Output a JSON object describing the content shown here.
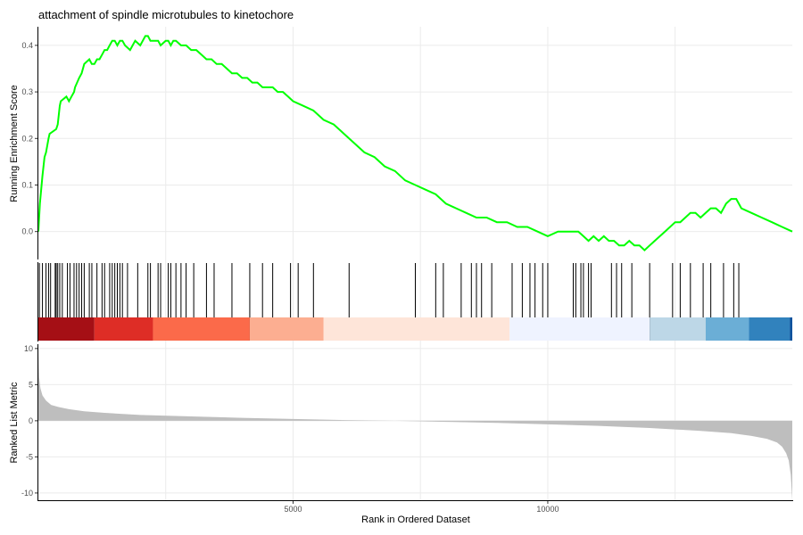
{
  "chart_data": {
    "type": "line",
    "title": "attachment of spindle microtubules to kinetochore",
    "xlabel": "Rank in Ordered Dataset",
    "xlim": [
      0,
      14800
    ],
    "xticks": [
      5000,
      10000
    ],
    "xtick_labels": [
      "5000",
      "10000"
    ],
    "grid": true,
    "panels": [
      {
        "name": "running-score",
        "ylabel": "Running Enrichment Score",
        "ylim": [
          -0.06,
          0.44
        ],
        "yticks": [
          0.0,
          0.1,
          0.2,
          0.3,
          0.4
        ],
        "ytick_labels": [
          "0.0",
          "0.1",
          "0.2",
          "0.3",
          "0.4"
        ],
        "series": [
          {
            "color": "#00ff00",
            "x": [
              0,
              30,
              80,
              120,
              150,
              200,
              220,
              350,
              380,
              420,
              440,
              550,
              600,
              650,
              700,
              720,
              800,
              850,
              900,
              1000,
              1050,
              1100,
              1150,
              1200,
              1250,
              1300,
              1350,
              1400,
              1450,
              1500,
              1550,
              1600,
              1650,
              1700,
              1800,
              1900,
              2000,
              2100,
              2150,
              2200,
              2300,
              2350,
              2400,
              2500,
              2550,
              2600,
              2650,
              2700,
              2800,
              2900,
              3000,
              3100,
              3200,
              3300,
              3400,
              3500,
              3600,
              3700,
              3800,
              3900,
              4000,
              4100,
              4200,
              4300,
              4400,
              4500,
              4600,
              4700,
              4800,
              4900,
              5000,
              5200,
              5400,
              5600,
              5800,
              6000,
              6200,
              6400,
              6600,
              6800,
              7000,
              7200,
              7400,
              7600,
              7800,
              8000,
              8200,
              8400,
              8600,
              8800,
              9000,
              9200,
              9400,
              9600,
              9800,
              10000,
              10200,
              10400,
              10500,
              10600,
              10700,
              10800,
              10900,
              11000,
              11100,
              11200,
              11300,
              11400,
              11500,
              11600,
              11700,
              11800,
              11900,
              12000,
              12100,
              12200,
              12300,
              12400,
              12500,
              12600,
              12700,
              12800,
              12900,
              13000,
              13100,
              13200,
              13300,
              13400,
              13500,
              13600,
              13700,
              13800,
              14000,
              14200,
              14400,
              14600,
              14800
            ],
            "y": [
              0.0,
              0.06,
              0.12,
              0.16,
              0.17,
              0.2,
              0.21,
              0.22,
              0.23,
              0.27,
              0.28,
              0.29,
              0.28,
              0.29,
              0.3,
              0.31,
              0.33,
              0.34,
              0.36,
              0.37,
              0.36,
              0.36,
              0.37,
              0.37,
              0.38,
              0.39,
              0.39,
              0.4,
              0.41,
              0.41,
              0.4,
              0.41,
              0.41,
              0.4,
              0.39,
              0.41,
              0.4,
              0.42,
              0.42,
              0.41,
              0.41,
              0.41,
              0.4,
              0.41,
              0.41,
              0.4,
              0.41,
              0.41,
              0.4,
              0.4,
              0.39,
              0.39,
              0.38,
              0.37,
              0.37,
              0.36,
              0.36,
              0.35,
              0.34,
              0.34,
              0.33,
              0.33,
              0.32,
              0.32,
              0.31,
              0.31,
              0.31,
              0.3,
              0.3,
              0.29,
              0.28,
              0.27,
              0.26,
              0.24,
              0.23,
              0.21,
              0.19,
              0.17,
              0.16,
              0.14,
              0.13,
              0.11,
              0.1,
              0.09,
              0.08,
              0.06,
              0.05,
              0.04,
              0.03,
              0.03,
              0.02,
              0.02,
              0.01,
              0.01,
              0.0,
              -0.01,
              0.0,
              0.0,
              0.0,
              0.0,
              -0.01,
              -0.02,
              -0.01,
              -0.02,
              -0.01,
              -0.02,
              -0.02,
              -0.03,
              -0.03,
              -0.02,
              -0.03,
              -0.03,
              -0.04,
              -0.03,
              -0.02,
              -0.01,
              0.0,
              0.01,
              0.02,
              0.02,
              0.03,
              0.04,
              0.04,
              0.03,
              0.04,
              0.05,
              0.05,
              0.04,
              0.06,
              0.07,
              0.07,
              0.05,
              0.04,
              0.03,
              0.02,
              0.01,
              0.0
            ]
          }
        ]
      },
      {
        "name": "gene-hits",
        "type": "rug",
        "hits": [
          20,
          80,
          150,
          200,
          240,
          330,
          350,
          380,
          420,
          470,
          570,
          620,
          700,
          750,
          800,
          850,
          900,
          1000,
          1050,
          1150,
          1250,
          1300,
          1400,
          1450,
          1500,
          1550,
          1600,
          1650,
          1750,
          1950,
          2150,
          2200,
          2350,
          2400,
          2550,
          2600,
          2700,
          2800,
          2900,
          3050,
          3300,
          3450,
          3800,
          4150,
          4400,
          4600,
          4950,
          5100,
          5400,
          6100,
          7400,
          7800,
          7950,
          8300,
          8500,
          8600,
          8700,
          8900,
          9300,
          9500,
          9650,
          9750,
          9900,
          10000,
          10500,
          10550,
          10650,
          10700,
          10800,
          10850,
          11250,
          11350,
          11450,
          11650,
          12000,
          12450,
          12600,
          12800,
          13050,
          13200,
          13450,
          13650,
          13750
        ]
      },
      {
        "name": "rank-heatmap",
        "type": "heatmap",
        "bands": [
          {
            "from": 0,
            "to": 1100,
            "color": "#a50f15"
          },
          {
            "from": 1100,
            "to": 2250,
            "color": "#de2d26"
          },
          {
            "from": 2250,
            "to": 4150,
            "color": "#fb6a4a"
          },
          {
            "from": 4150,
            "to": 5600,
            "color": "#fcae91"
          },
          {
            "from": 5600,
            "to": 9250,
            "color": "#fee5d9"
          },
          {
            "from": 9250,
            "to": 12000,
            "color": "#eff3ff"
          },
          {
            "from": 12000,
            "to": 13100,
            "color": "#bdd7e7"
          },
          {
            "from": 13100,
            "to": 13950,
            "color": "#6baed6"
          },
          {
            "from": 13950,
            "to": 14750,
            "color": "#3182bd"
          },
          {
            "from": 14750,
            "to": 14800,
            "color": "#08519c"
          }
        ]
      },
      {
        "name": "ranked-metric",
        "type": "area",
        "ylabel": "Ranked List Metric",
        "ylim": [
          -11,
          10.6
        ],
        "yticks": [
          10,
          5,
          0,
          -5,
          -10
        ],
        "ytick_labels": [
          "10",
          "5",
          "0",
          "-5",
          "-10"
        ],
        "fill": "#bebebe",
        "x": [
          0,
          15,
          40,
          80,
          150,
          250,
          400,
          600,
          900,
          1300,
          2000,
          3000,
          4000,
          5000,
          6000,
          7000,
          8000,
          9000,
          10000,
          11000,
          12000,
          13000,
          13600,
          14000,
          14300,
          14500,
          14600,
          14680,
          14730,
          14770,
          14800
        ],
        "y": [
          10.5,
          6.0,
          4.5,
          3.5,
          2.8,
          2.2,
          1.9,
          1.6,
          1.3,
          1.1,
          0.8,
          0.6,
          0.4,
          0.25,
          0.1,
          0.0,
          -0.15,
          -0.3,
          -0.5,
          -0.7,
          -1.0,
          -1.4,
          -1.7,
          -2.1,
          -2.5,
          -3.0,
          -3.6,
          -4.5,
          -5.5,
          -7.5,
          -11.0
        ]
      }
    ]
  }
}
